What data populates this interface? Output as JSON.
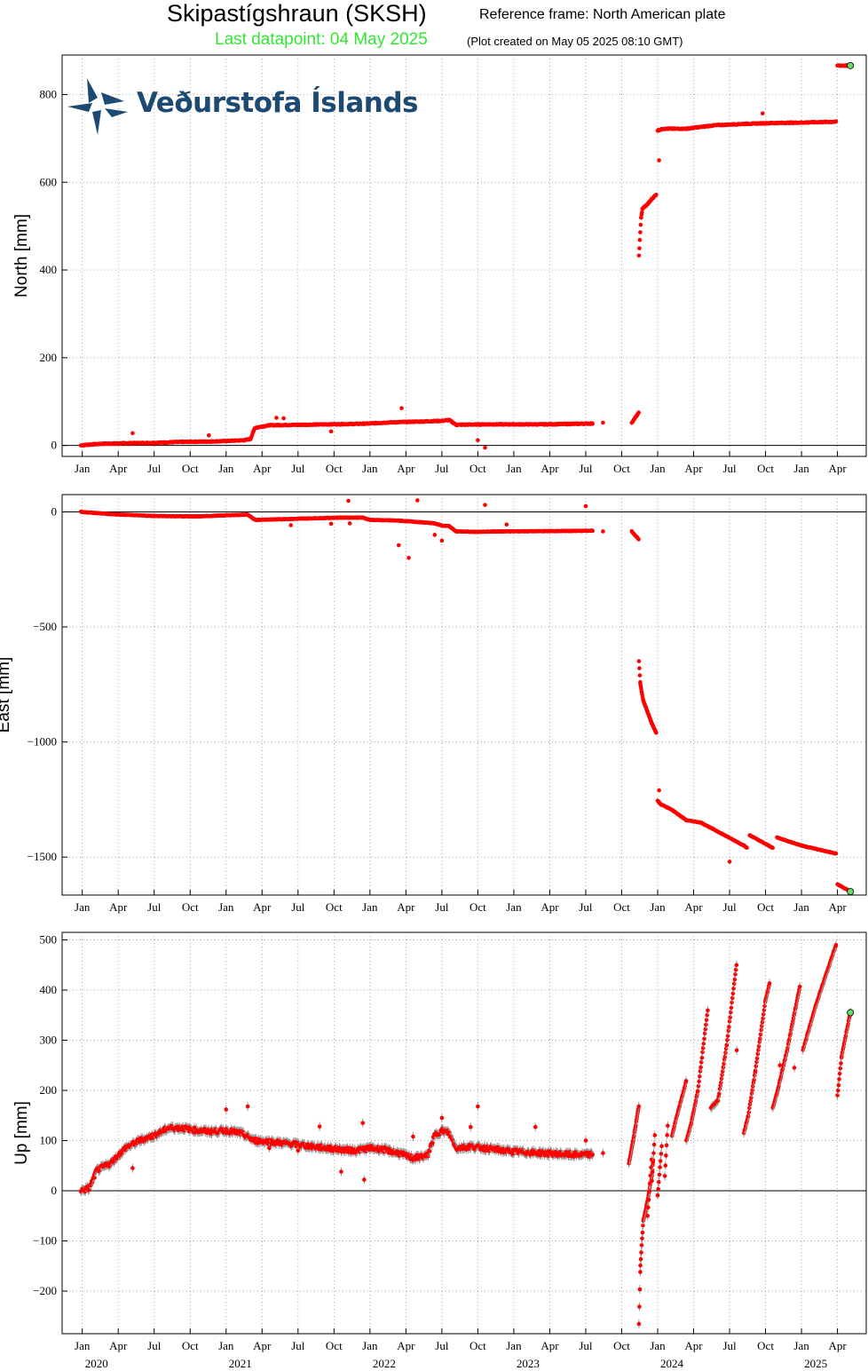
{
  "header": {
    "title": "Skipastígshraun (SKSH)",
    "reference": "Reference frame: North American plate",
    "last_datapoint": "Last datapoint: 04 May 2025",
    "created": "(Plot created on May 05 2025 08:10 GMT)"
  },
  "logo": {
    "text": "Veðurstofa Íslands",
    "icon": "snowflake-logo-icon",
    "color": "#1c4a72"
  },
  "colors": {
    "data": "#ff0000",
    "errorbar": "#9a9a9a",
    "last_point": "#66dd66",
    "grid": "#888888"
  },
  "x_axis": {
    "month_labels": [
      "Jan",
      "Apr",
      "Jul",
      "Oct",
      "Jan",
      "Apr",
      "Jul",
      "Oct",
      "Jan",
      "Apr",
      "Jul",
      "Oct",
      "Jan",
      "Apr",
      "Jul",
      "Oct",
      "Jan",
      "Apr",
      "Jul",
      "Oct",
      "Jan",
      "Apr"
    ],
    "month_dates": [
      "2020-01",
      "2020-04",
      "2020-07",
      "2020-10",
      "2021-01",
      "2021-04",
      "2021-07",
      "2021-10",
      "2022-01",
      "2022-04",
      "2022-07",
      "2022-10",
      "2023-01",
      "2023-04",
      "2023-07",
      "2023-10",
      "2024-01",
      "2024-04",
      "2024-07",
      "2024-10",
      "2025-01",
      "2025-04"
    ],
    "year_labels": [
      "2020",
      "2021",
      "2022",
      "2023",
      "2024",
      "2025"
    ]
  },
  "chart_data": [
    {
      "type": "scatter",
      "ylabel": "North [mm]",
      "ylim": [
        -25,
        890
      ],
      "yticks": [
        0,
        200,
        400,
        600,
        800
      ],
      "x_unit": "decimal year",
      "segments": [
        {
          "x": [
            2019.99,
            2020.05,
            2020.15,
            2020.3,
            2020.5,
            2020.7,
            2020.9,
            2021.0,
            2021.13,
            2021.17,
            2021.2,
            2021.3,
            2021.5,
            2021.7,
            2021.9,
            2022.0,
            2022.1,
            2022.3,
            2022.5,
            2022.55,
            2022.6,
            2022.8,
            2023.0,
            2023.2,
            2023.4,
            2023.55
          ],
          "y": [
            0,
            2,
            4,
            5,
            6,
            8,
            9,
            10,
            12,
            15,
            40,
            46,
            47,
            48,
            49,
            50,
            52,
            54,
            56,
            58,
            47,
            48,
            48,
            48,
            49,
            50
          ],
          "step": 0.004
        },
        {
          "x": [
            2023.62
          ],
          "y": [
            52
          ]
        },
        {
          "x": [
            2023.82,
            2023.87
          ],
          "y": [
            52,
            75
          ],
          "step": 0.004
        },
        {
          "x": [
            2023.87,
            2023.885,
            2023.895,
            2023.93,
            2023.96,
            2023.99
          ],
          "y": [
            433,
            520,
            540,
            550,
            562,
            572
          ],
          "step": 0.003
        },
        {
          "x": [
            2024.0,
            2024.04,
            2024.2,
            2024.4,
            2024.6,
            2024.8,
            2025.0,
            2025.24
          ],
          "y": [
            718,
            722,
            722,
            730,
            733,
            735,
            736,
            738
          ],
          "step": 0.004
        },
        {
          "x": [
            2025.25,
            2025.34
          ],
          "y": [
            866,
            866
          ],
          "step": 0.004
        }
      ],
      "outliers": [
        [
          2020.35,
          28
        ],
        [
          2020.88,
          23
        ],
        [
          2021.35,
          63
        ],
        [
          2021.4,
          62
        ],
        [
          2021.73,
          32
        ],
        [
          2022.22,
          85
        ],
        [
          2022.75,
          12
        ],
        [
          2022.8,
          -5
        ],
        [
          2024.01,
          650
        ],
        [
          2024.73,
          757
        ]
      ],
      "last_point": [
        2025.34,
        866
      ]
    },
    {
      "type": "scatter",
      "ylabel": "East [mm]",
      "ylim": [
        -1665,
        75
      ],
      "yticks": [
        0,
        -500,
        -1000,
        -1500
      ],
      "x_unit": "decimal year",
      "segments": [
        {
          "x": [
            2019.99,
            2020.2,
            2020.5,
            2020.8,
            2021.0,
            2021.15,
            2021.2,
            2021.5,
            2021.8,
            2021.95,
            2022.0,
            2022.2,
            2022.35,
            2022.45,
            2022.5,
            2022.55,
            2022.6,
            2022.75,
            2022.9,
            2023.2,
            2023.4,
            2023.55
          ],
          "y": [
            0,
            -10,
            -18,
            -20,
            -15,
            -12,
            -35,
            -30,
            -25,
            -25,
            -35,
            -38,
            -45,
            -50,
            -60,
            -62,
            -85,
            -87,
            -85,
            -84,
            -83,
            -82
          ],
          "step": 0.004
        },
        {
          "x": [
            2023.62
          ],
          "y": [
            -85
          ]
        },
        {
          "x": [
            2023.82,
            2023.87
          ],
          "y": [
            -85,
            -120
          ],
          "step": 0.004
        },
        {
          "x": [
            2023.87,
            2023.88,
            2023.9,
            2023.93,
            2023.96,
            2023.99
          ],
          "y": [
            -650,
            -750,
            -820,
            -870,
            -920,
            -960
          ],
          "step": 0.003
        },
        {
          "x": [
            2024.0,
            2024.02,
            2024.1,
            2024.2,
            2024.3,
            2024.45,
            2024.6,
            2024.62
          ],
          "y": [
            -1255,
            -1270,
            -1295,
            -1340,
            -1350,
            -1400,
            -1450,
            -1460
          ],
          "step": 0.004
        },
        {
          "x": [
            2024.64,
            2024.8
          ],
          "y": [
            -1405,
            -1460
          ],
          "step": 0.004
        },
        {
          "x": [
            2024.83,
            2025.0,
            2025.24
          ],
          "y": [
            -1415,
            -1450,
            -1485
          ],
          "step": 0.004
        },
        {
          "x": [
            2025.25,
            2025.34
          ],
          "y": [
            -1618,
            -1650
          ],
          "step": 0.004
        }
      ],
      "outliers": [
        [
          2021.85,
          48
        ],
        [
          2021.86,
          -50
        ],
        [
          2022.2,
          -145
        ],
        [
          2022.27,
          -200
        ],
        [
          2022.33,
          50
        ],
        [
          2022.45,
          -100
        ],
        [
          2022.5,
          -125
        ],
        [
          2022.8,
          30
        ],
        [
          2023.5,
          25
        ],
        [
          2024.01,
          -1210
        ],
        [
          2024.5,
          -1520
        ],
        [
          2021.45,
          -58
        ],
        [
          2021.73,
          -52
        ],
        [
          2022.95,
          -55
        ]
      ],
      "last_point": [
        2025.34,
        -1650
      ]
    },
    {
      "type": "scatter",
      "ylabel": "Up [mm]",
      "ylim": [
        -285,
        515
      ],
      "yticks": [
        -200,
        -100,
        0,
        100,
        200,
        300,
        400,
        500
      ],
      "x_unit": "decimal year",
      "errorbars": true,
      "segments": [
        {
          "x": [
            2019.99,
            2020.05,
            2020.1,
            2020.2,
            2020.3,
            2020.4,
            2020.5,
            2020.6,
            2020.7,
            2020.8,
            2020.9,
            2021.0,
            2021.1,
            2021.2,
            2021.3,
            2021.4,
            2021.5,
            2021.6,
            2021.7,
            2021.8,
            2021.9,
            2022.0,
            2022.1,
            2022.2,
            2022.3,
            2022.4,
            2022.45,
            2022.5,
            2022.55,
            2022.6,
            2022.7,
            2022.8,
            2023.0,
            2023.2,
            2023.4,
            2023.55
          ],
          "y": [
            0,
            5,
            40,
            55,
            85,
            100,
            110,
            125,
            125,
            120,
            118,
            120,
            115,
            100,
            98,
            95,
            92,
            88,
            85,
            82,
            80,
            85,
            82,
            75,
            65,
            70,
            110,
            120,
            115,
            85,
            88,
            85,
            78,
            75,
            72,
            72
          ],
          "step": 0.004,
          "jitter": 10
        },
        {
          "x": [
            2023.62
          ],
          "y": [
            75
          ]
        },
        {
          "x": [
            2023.8,
            2023.83,
            2023.87
          ],
          "y": [
            55,
            100,
            170
          ],
          "step": 0.003
        },
        {
          "x": [
            2023.87,
            2023.88,
            2023.9,
            2023.93,
            2023.96,
            2023.97
          ],
          "y": [
            -265,
            -150,
            -60,
            -20,
            30,
            65
          ],
          "step": 0.003
        },
        {
          "x": [
            2023.93,
            2023.96
          ],
          "y": [
            -50,
            70
          ],
          "step": 0.004
        },
        {
          "x": [
            2023.96,
            2023.98
          ],
          "y": [
            20,
            110
          ],
          "step": 0.004
        },
        {
          "x": [
            2024.0,
            2024.03
          ],
          "y": [
            -10,
            95
          ],
          "step": 0.004
        },
        {
          "x": [
            2024.05,
            2024.07
          ],
          "y": [
            30,
            130
          ],
          "step": 0.004
        },
        {
          "x": [
            2024.1,
            2024.13,
            2024.2
          ],
          "y": [
            110,
            145,
            220
          ],
          "step": 0.004
        },
        {
          "x": [
            2024.2,
            2024.23,
            2024.28,
            2024.35
          ],
          "y": [
            100,
            130,
            200,
            365
          ],
          "step": 0.004
        },
        {
          "x": [
            2024.37,
            2024.42,
            2024.48,
            2024.55
          ],
          "y": [
            165,
            180,
            290,
            455
          ],
          "step": 0.004
        },
        {
          "x": [
            2024.6,
            2024.63,
            2024.68,
            2024.75,
            2024.78
          ],
          "y": [
            115,
            150,
            240,
            380,
            415
          ],
          "step": 0.004
        },
        {
          "x": [
            2024.8,
            2024.83,
            2024.9,
            2024.99
          ],
          "y": [
            165,
            195,
            280,
            410
          ],
          "step": 0.004
        },
        {
          "x": [
            2025.01,
            2025.1,
            2025.24
          ],
          "y": [
            280,
            370,
            490
          ],
          "step": 0.004
        },
        {
          "x": [
            2025.25,
            2025.28,
            2025.34
          ],
          "y": [
            190,
            270,
            355
          ],
          "step": 0.004
        }
      ],
      "outliers": [
        [
          2020.35,
          45
        ],
        [
          2021.0,
          162
        ],
        [
          2021.15,
          168
        ],
        [
          2021.3,
          85
        ],
        [
          2021.5,
          80
        ],
        [
          2021.65,
          128
        ],
        [
          2021.8,
          38
        ],
        [
          2021.95,
          135
        ],
        [
          2021.96,
          22
        ],
        [
          2022.3,
          108
        ],
        [
          2022.5,
          145
        ],
        [
          2022.75,
          168
        ],
        [
          2022.7,
          127
        ],
        [
          2023.15,
          127
        ],
        [
          2023.5,
          100
        ],
        [
          2024.55,
          280
        ],
        [
          2024.85,
          250
        ],
        [
          2024.95,
          245
        ]
      ],
      "last_point": [
        2025.34,
        355
      ]
    }
  ]
}
